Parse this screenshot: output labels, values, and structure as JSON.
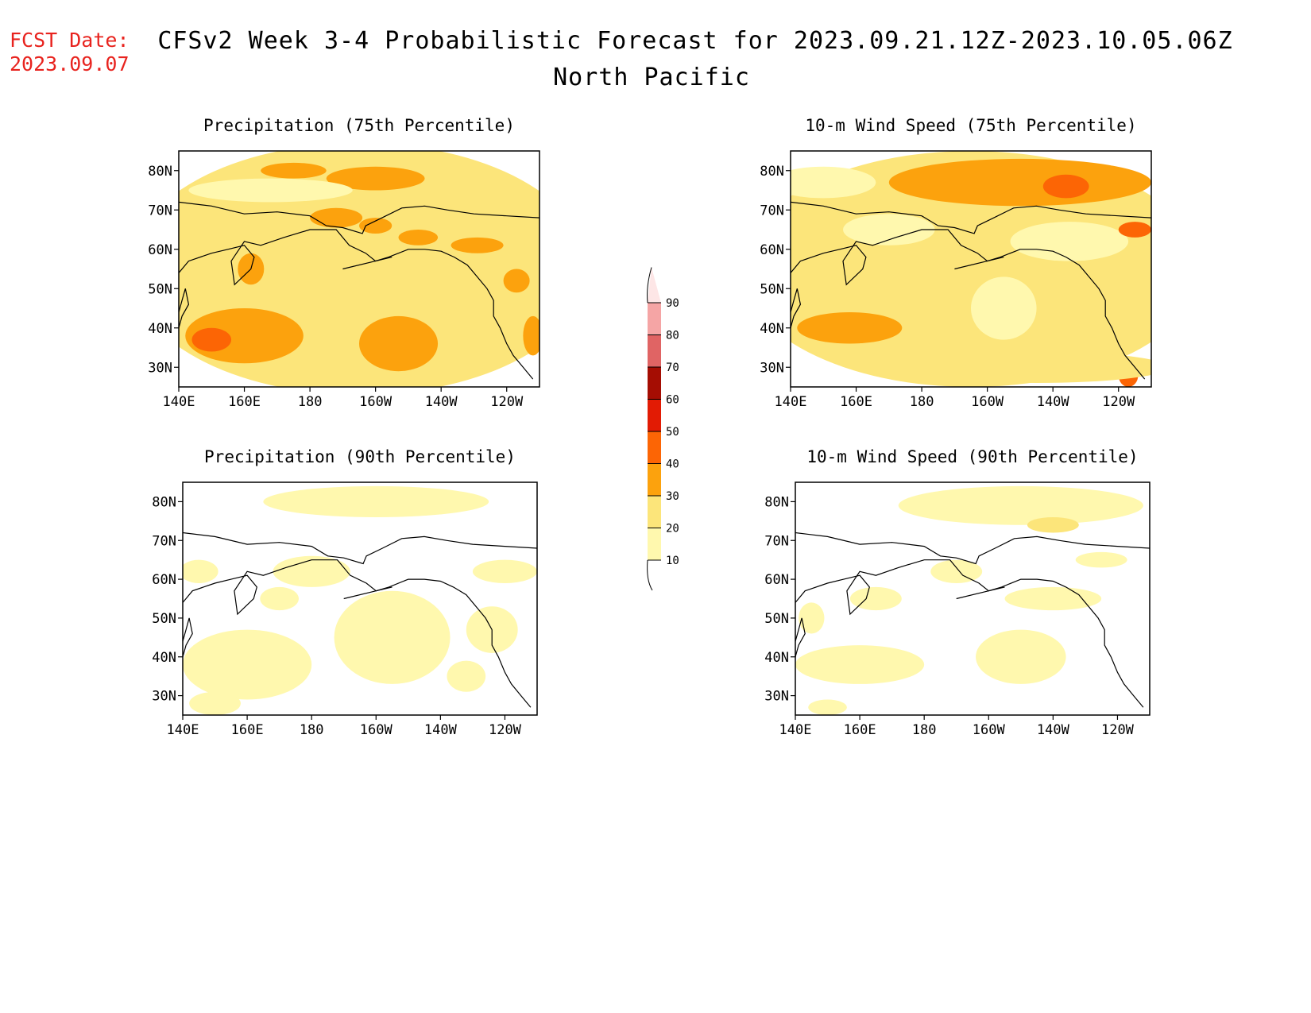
{
  "header": {
    "fcst_label": "FCST Date:",
    "fcst_date": "2023.09.07",
    "title": "CFSv2 Week 3-4 Probabilistic Forecast for 2023.09.21.12Z-2023.10.05.06Z",
    "region": "North Pacific"
  },
  "panels": [
    {
      "id": "precip-75",
      "title": "Precipitation (75th Percentile)"
    },
    {
      "id": "wind-75",
      "title": "10-m Wind Speed (75th Percentile)"
    },
    {
      "id": "precip-90",
      "title": "Precipitation (90th Percentile)"
    },
    {
      "id": "wind-90",
      "title": "10-m Wind Speed (90th Percentile)"
    }
  ],
  "axes": {
    "lon_labels": [
      "140E",
      "160E",
      "180",
      "160W",
      "140W",
      "120W"
    ],
    "lat_labels": [
      "80N",
      "70N",
      "60N",
      "50N",
      "40N",
      "30N"
    ],
    "lon_range": [
      140,
      250
    ],
    "lat_range": [
      25,
      85
    ]
  },
  "colorbar": {
    "levels": [
      "10",
      "20",
      "30",
      "40",
      "50",
      "60",
      "70",
      "80",
      "90"
    ],
    "colors": [
      "#fff8ae",
      "#fce57a",
      "#fca20d",
      "#fc6505",
      "#e21b04",
      "#a50d03",
      "#e06464",
      "#f5a5a5",
      "#fde6e6"
    ]
  }
}
